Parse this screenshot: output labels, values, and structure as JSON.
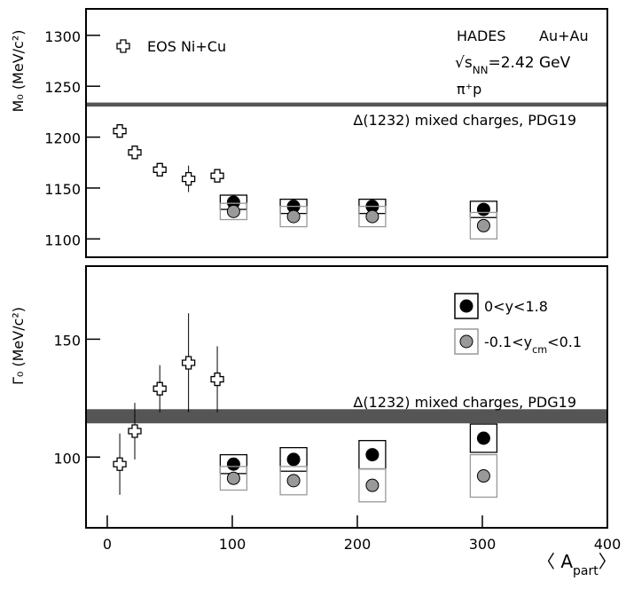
{
  "chart_data": [
    {
      "type": "scatter",
      "ylabel": "M₀ (MeV/c²)",
      "xlim": [
        -17,
        400
      ],
      "ylim": [
        1082,
        1326
      ],
      "yticks": [
        1100,
        1150,
        1200,
        1250,
        1300
      ],
      "annotations": {
        "experiment": "HADES",
        "system": "Au+Au",
        "energy": [
          "√s",
          "NN",
          "=2.42 GeV"
        ],
        "channel": "π⁺p"
      },
      "band": {
        "label": "Δ(1232) mixed charges, PDG19",
        "value": 1232,
        "half_width": 2,
        "color": "#555555"
      },
      "series": [
        {
          "name": "EOS Ni+Cu",
          "marker": "cross",
          "color": "#000000",
          "x": [
            10,
            22,
            42,
            65,
            88
          ],
          "values": [
            1206,
            1185,
            1168,
            1159,
            1162
          ],
          "errors": [
            3,
            3,
            3,
            13,
            3
          ]
        },
        {
          "marker": "circle",
          "color": "#000000",
          "x": [
            101,
            149,
            212,
            301
          ],
          "values": [
            1136,
            1132,
            1132,
            1129
          ],
          "sys": [
            7,
            7,
            7,
            8
          ]
        },
        {
          "marker": "circle",
          "color": "#999999",
          "x": [
            101,
            149,
            212,
            301
          ],
          "values": [
            1127,
            1122,
            1122,
            1113
          ],
          "sys": [
            8,
            10,
            10,
            13
          ]
        }
      ]
    },
    {
      "type": "scatter",
      "ylabel": "Γ₀ (MeV/c²)",
      "xlabel": [
        "〈 A",
        "part",
        "〉"
      ],
      "xlim": [
        -17,
        400
      ],
      "ylim": [
        70,
        181
      ],
      "xticks": [
        0,
        100,
        200,
        300,
        400
      ],
      "yticks": [
        100,
        150
      ],
      "band": {
        "label": "Δ(1232) mixed charges, PDG19",
        "value": 117.3,
        "half_width": 3,
        "color": "#555555"
      },
      "series": [
        {
          "marker": "cross",
          "color": "#000000",
          "x": [
            10,
            22,
            42,
            65,
            88
          ],
          "values": [
            97,
            111,
            129,
            140,
            133
          ],
          "errors": [
            13,
            12,
            10,
            21,
            14
          ]
        },
        {
          "name": [
            "0<y<1.8"
          ],
          "marker": "circle",
          "color": "#000000",
          "x": [
            101,
            149,
            212,
            301
          ],
          "values": [
            97,
            99,
            101,
            108
          ],
          "sys": [
            4,
            5,
            6,
            6
          ]
        },
        {
          "name": [
            "-0.1<y",
            "cm",
            "<0.1"
          ],
          "marker": "circle",
          "color": "#999999",
          "x": [
            101,
            149,
            212,
            301
          ],
          "values": [
            91,
            90,
            88,
            92
          ],
          "sys": [
            5,
            6,
            7,
            9
          ]
        }
      ]
    }
  ]
}
